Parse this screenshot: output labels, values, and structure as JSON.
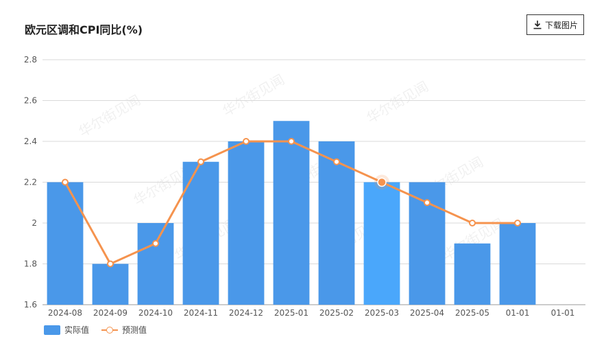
{
  "header": {
    "title": "欧元区调和CPI同比(%)",
    "download_label": "下载图片"
  },
  "colors": {
    "bar": "#4a98e9",
    "bar_highlight": "#4aa7fb",
    "line": "#f5934e",
    "grid": "#d9d9d9",
    "axis_text": "#555555"
  },
  "legend": {
    "actual": "实际值",
    "forecast": "预测值"
  },
  "watermark": "华尔街见闻",
  "chart_data": {
    "type": "bar",
    "categories": [
      "2024-08",
      "2024-09",
      "2024-10",
      "2024-11",
      "2024-12",
      "2025-01",
      "2025-02",
      "2025-03",
      "2025-04",
      "2025-05",
      "01-01",
      "01-01"
    ],
    "ylim": [
      1.6,
      2.8
    ],
    "yticks": [
      "1.6",
      "1.8",
      "2",
      "2.2",
      "2.4",
      "2.6",
      "2.8"
    ],
    "grid": true,
    "legend_position": "bottom-left",
    "highlight_index": 7,
    "series": [
      {
        "name": "实际值",
        "type": "bar",
        "values": [
          2.2,
          1.8,
          2.0,
          2.3,
          2.4,
          2.5,
          2.4,
          2.2,
          2.2,
          1.9,
          2.0,
          null
        ]
      },
      {
        "name": "预测值",
        "type": "line",
        "values": [
          2.2,
          1.8,
          1.9,
          2.3,
          2.4,
          2.4,
          2.3,
          2.2,
          2.1,
          2.0,
          2.0,
          null
        ]
      }
    ]
  }
}
